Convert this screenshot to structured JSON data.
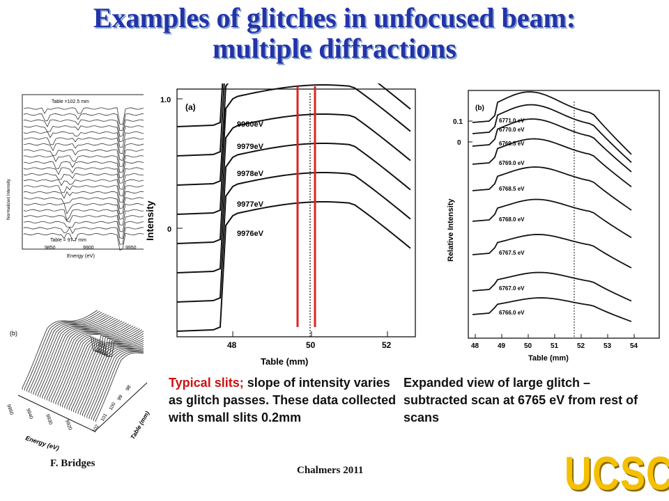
{
  "slide": {
    "title_line1": "Examples of glitches in unfocused beam:",
    "title_line2": "multiple diffractions",
    "caption_left_red": "Typical slits;",
    "caption_left_rest": " slope of intensity varies as glitch passes.  These data collected with small slits 0.2mm",
    "caption_right": "Expanded view of large glitch – subtracted  scan at 6765 eV from rest of scans",
    "author": "F. Bridges",
    "event": "Chalmers 2011",
    "logo_text": "UCSC"
  },
  "colors": {
    "title": "#2233aa",
    "slit_lines": "#dd2222",
    "logo": "#f5c000"
  },
  "panel_small": {
    "top_label": "Table =102.5  mm",
    "bottom_label": "Table =  97.7  mm",
    "ylabel": "Normalized Intensity",
    "xlabel": "Energy (eV)",
    "xticks": [
      "9850",
      "9900",
      "9950"
    ]
  },
  "panel_3d": {
    "label": "(b)",
    "energy_label": "Energy (eV)",
    "table_label": "Table (mm)",
    "energy_ticks": [
      "9950",
      "9940",
      "9930",
      "9920"
    ],
    "table_ticks": [
      "102",
      "101",
      "100",
      "99",
      "98"
    ]
  },
  "panel_a": {
    "label": "(a)",
    "ylabel": "Intensity",
    "xlabel": "Table (mm)",
    "yticks": [
      "1.0",
      "0"
    ],
    "xticks": [
      "48",
      "50",
      "52"
    ],
    "series": [
      "9980eV",
      "9979eV",
      "9978eV",
      "9977eV",
      "9976eV"
    ]
  },
  "panel_b": {
    "label": "(b)",
    "ylabel": "Relative Intensity",
    "xlabel": "Table (mm)",
    "yticks": [
      "0.1",
      "0"
    ],
    "xticks": [
      "48",
      "49",
      "50",
      "51",
      "52",
      "53",
      "54"
    ],
    "series": [
      "6771.0  eV",
      "6770.0  eV",
      "6769.5  eV",
      "6769.0  eV",
      "6768.5  eV",
      "6768.0  eV",
      "6767.5  eV",
      "6767.0  eV",
      "6766.0  eV"
    ]
  }
}
